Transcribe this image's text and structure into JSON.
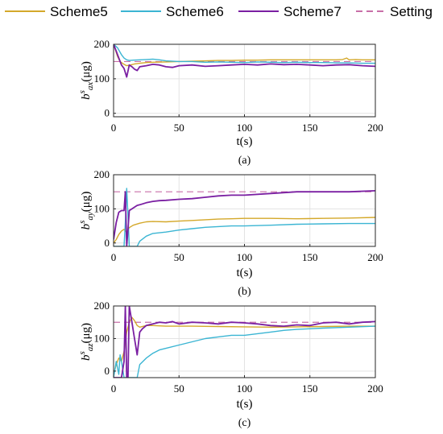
{
  "legend": {
    "items": [
      {
        "name": "Scheme5",
        "color": "#D4A82A",
        "dash": false
      },
      {
        "name": "Scheme6",
        "color": "#3BB5D3",
        "dash": false
      },
      {
        "name": "Scheme7",
        "color": "#7A1FA2",
        "dash": false
      },
      {
        "name": "Setting",
        "color": "#C86FA8",
        "dash": true
      }
    ]
  },
  "chart_data": [
    {
      "type": "line",
      "caption": "(a)",
      "xlabel": "t(s)",
      "ylabel_base": "b",
      "ylabel_sup": "s",
      "ylabel_sub": "ax",
      "ylabel_unit": "(μg)",
      "xlim": [
        0,
        200
      ],
      "ylim": [
        -10,
        200
      ],
      "xticks": [
        0,
        50,
        100,
        150,
        200
      ],
      "yticks": [
        0,
        100,
        200
      ],
      "setting": 150,
      "series": [
        {
          "name": "Scheme5",
          "x": [
            0,
            3,
            5,
            8,
            10,
            13,
            16,
            20,
            25,
            30,
            40,
            50,
            60,
            70,
            80,
            90,
            100,
            110,
            120,
            130,
            140,
            150,
            160,
            170,
            175,
            178,
            180,
            185,
            190,
            200
          ],
          "y": [
            200,
            165,
            150,
            142,
            138,
            140,
            143,
            145,
            147,
            148,
            149,
            150,
            151,
            152,
            153,
            153,
            154,
            154,
            155,
            155,
            155,
            155,
            155,
            155,
            156,
            160,
            155,
            156,
            155,
            155
          ]
        },
        {
          "name": "Scheme6",
          "x": [
            0,
            3,
            6,
            8,
            10,
            12,
            15,
            20,
            25,
            30,
            35,
            40,
            50,
            60,
            70,
            80,
            90,
            100,
            110,
            120,
            130,
            140,
            150,
            160,
            170,
            180,
            190,
            200
          ],
          "y": [
            200,
            190,
            170,
            160,
            155,
            153,
            154,
            155,
            156,
            157,
            155,
            152,
            150,
            150,
            148,
            149,
            148,
            147,
            149,
            148,
            147,
            148,
            147,
            147,
            146,
            146,
            145,
            145
          ]
        },
        {
          "name": "Scheme7",
          "x": [
            0,
            2,
            4,
            6,
            8,
            10,
            12,
            14,
            16,
            18,
            20,
            25,
            30,
            35,
            40,
            45,
            50,
            60,
            70,
            80,
            90,
            100,
            110,
            120,
            130,
            140,
            150,
            160,
            170,
            180,
            190,
            200
          ],
          "y": [
            200,
            180,
            160,
            140,
            130,
            105,
            140,
            135,
            128,
            124,
            135,
            138,
            142,
            140,
            135,
            133,
            138,
            140,
            136,
            138,
            140,
            142,
            140,
            143,
            141,
            142,
            140,
            138,
            140,
            141,
            138,
            136
          ]
        }
      ]
    },
    {
      "type": "line",
      "caption": "(b)",
      "xlabel": "t(s)",
      "ylabel_base": "b",
      "ylabel_sup": "s",
      "ylabel_sub": "ay",
      "ylabel_unit": "(μg)",
      "xlim": [
        0,
        200
      ],
      "ylim": [
        -10,
        200
      ],
      "xticks": [
        0,
        50,
        100,
        150,
        200
      ],
      "yticks": [
        0,
        100,
        200
      ],
      "setting": 150,
      "series": [
        {
          "name": "Scheme5",
          "x": [
            0,
            2,
            4,
            6,
            8,
            10,
            12,
            15,
            20,
            25,
            30,
            40,
            50,
            60,
            70,
            80,
            90,
            100,
            120,
            140,
            160,
            180,
            200
          ],
          "y": [
            0,
            10,
            25,
            35,
            40,
            30,
            45,
            52,
            58,
            62,
            63,
            62,
            64,
            66,
            68,
            70,
            71,
            72,
            72,
            71,
            72,
            73,
            75
          ]
        },
        {
          "name": "Scheme6",
          "x": [
            0,
            2,
            4,
            6,
            8,
            9,
            10,
            11,
            12,
            14,
            16,
            18,
            20,
            25,
            30,
            40,
            50,
            60,
            70,
            80,
            90,
            100,
            120,
            140,
            160,
            180,
            200
          ],
          "y": [
            -10,
            -10,
            -10,
            -10,
            -10,
            60,
            160,
            80,
            -10,
            -10,
            -10,
            -10,
            5,
            20,
            28,
            32,
            38,
            42,
            46,
            48,
            50,
            50,
            52,
            55,
            56,
            57,
            57
          ]
        },
        {
          "name": "Scheme7",
          "x": [
            0,
            2,
            4,
            6,
            8,
            9,
            10,
            11,
            12,
            14,
            16,
            18,
            20,
            25,
            30,
            35,
            40,
            50,
            60,
            70,
            80,
            90,
            100,
            120,
            140,
            160,
            180,
            200
          ],
          "y": [
            10,
            60,
            90,
            95,
            95,
            150,
            -10,
            40,
            95,
            100,
            105,
            110,
            112,
            118,
            122,
            124,
            125,
            128,
            130,
            134,
            138,
            140,
            140,
            145,
            150,
            150,
            150,
            153
          ]
        }
      ]
    },
    {
      "type": "line",
      "caption": "(c)",
      "xlabel": "t(s)",
      "ylabel_base": "b",
      "ylabel_sup": "s",
      "ylabel_sub": "az",
      "ylabel_unit": "(μg)",
      "xlim": [
        0,
        200
      ],
      "ylim": [
        -20,
        200
      ],
      "xticks": [
        0,
        50,
        100,
        150,
        200
      ],
      "yticks": [
        0,
        100,
        200
      ],
      "setting": 150,
      "series": [
        {
          "name": "Scheme5",
          "x": [
            0,
            2,
            4,
            6,
            8,
            10,
            12,
            14,
            16,
            18,
            20,
            25,
            30,
            40,
            50,
            60,
            80,
            100,
            120,
            140,
            160,
            180,
            200
          ],
          "y": [
            -10,
            20,
            40,
            30,
            60,
            120,
            150,
            165,
            155,
            140,
            135,
            140,
            140,
            138,
            138,
            138,
            137,
            136,
            135,
            136,
            137,
            138,
            138
          ]
        },
        {
          "name": "Scheme6",
          "x": [
            0,
            2,
            4,
            5,
            6,
            8,
            10,
            12,
            14,
            16,
            18,
            20,
            25,
            30,
            35,
            40,
            50,
            60,
            70,
            80,
            90,
            100,
            110,
            120,
            130,
            140,
            150,
            160,
            180,
            200
          ],
          "y": [
            -20,
            30,
            -10,
            50,
            30,
            -20,
            -20,
            -20,
            -20,
            -20,
            -20,
            20,
            40,
            55,
            65,
            70,
            80,
            90,
            100,
            105,
            110,
            110,
            115,
            120,
            125,
            128,
            130,
            132,
            135,
            138
          ]
        },
        {
          "name": "Scheme7",
          "x": [
            0,
            2,
            4,
            6,
            8,
            9,
            10,
            11,
            12,
            14,
            16,
            18,
            20,
            22,
            25,
            30,
            35,
            40,
            45,
            50,
            60,
            70,
            80,
            90,
            100,
            110,
            120,
            130,
            140,
            150,
            160,
            170,
            180,
            190,
            200
          ],
          "y": [
            -20,
            -20,
            -20,
            -20,
            30,
            200,
            -20,
            -20,
            200,
            150,
            100,
            50,
            120,
            130,
            140,
            145,
            150,
            148,
            152,
            145,
            150,
            148,
            145,
            150,
            148,
            145,
            140,
            138,
            142,
            140,
            148,
            150,
            145,
            150,
            152
          ]
        }
      ]
    }
  ]
}
